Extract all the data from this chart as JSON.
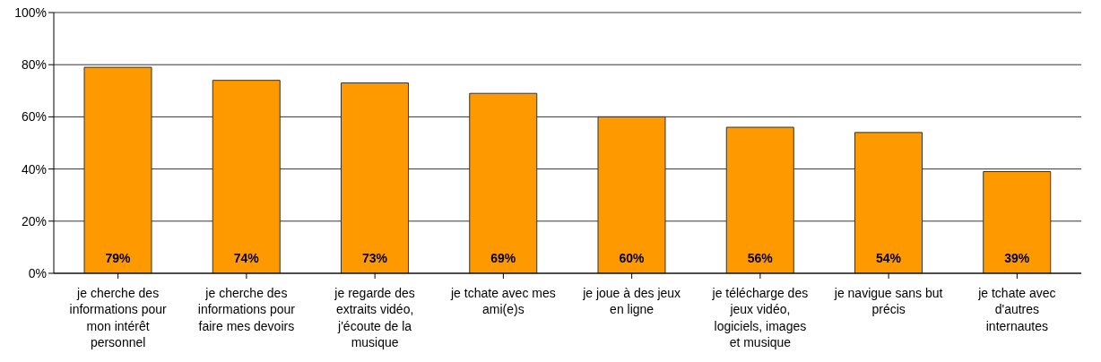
{
  "chart_data": {
    "type": "bar",
    "categories": [
      "je cherche des informations pour mon intérêt personnel",
      "je cherche des informations pour faire mes devoirs",
      "je regarde des extraits vidéo, j'écoute de la musique",
      "je tchate avec mes ami(e)s",
      "je joue à des jeux en ligne",
      "je télécharge des jeux vidéo, logiciels, images et musique",
      "je navigue sans but précis",
      "je tchate avec d'autres internautes"
    ],
    "values": [
      79,
      74,
      73,
      69,
      60,
      56,
      54,
      39
    ],
    "value_labels": [
      "79%",
      "74%",
      "73%",
      "69%",
      "60%",
      "56%",
      "54%",
      "39%"
    ],
    "color": "#ff9900",
    "ylim": [
      0,
      100
    ],
    "yticks": [
      {
        "value": 0,
        "label": "0%"
      },
      {
        "value": 20,
        "label": "20%"
      },
      {
        "value": 40,
        "label": "40%"
      },
      {
        "value": 60,
        "label": "60%"
      },
      {
        "value": 80,
        "label": "80%"
      },
      {
        "value": 100,
        "label": "100%"
      }
    ],
    "grid": "y"
  }
}
